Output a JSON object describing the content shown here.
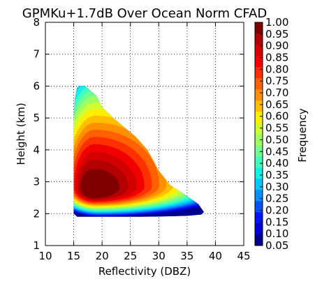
{
  "chart_data": {
    "type": "heatmap",
    "title": "GPMKu+1.7dB Over Ocean Norm CFAD",
    "xlabel": "Reflectivity (DBZ)",
    "ylabel": "Height (km)",
    "xlim": [
      10,
      45
    ],
    "ylim": [
      1,
      8
    ],
    "xticks": [
      "10",
      "15",
      "20",
      "25",
      "30",
      "35",
      "40",
      "45"
    ],
    "yticks": [
      "1",
      "2",
      "3",
      "4",
      "5",
      "6",
      "7",
      "8"
    ],
    "grid": true,
    "colorbar": {
      "label": "Frequency",
      "levels": [
        "0.05",
        "0.10",
        "0.15",
        "0.20",
        "0.25",
        "0.30",
        "0.35",
        "0.40",
        "0.45",
        "0.50",
        "0.55",
        "0.60",
        "0.65",
        "0.70",
        "0.75",
        "0.80",
        "0.85",
        "0.90",
        "0.95",
        "1.00"
      ],
      "colors": [
        "#00008f",
        "#0000d5",
        "#0015ff",
        "#0050ff",
        "#0090ff",
        "#00c8ff",
        "#10f0e8",
        "#40ffbf",
        "#70ff8f",
        "#a0ff60",
        "#cfff30",
        "#ffee00",
        "#ffbf00",
        "#ff9000",
        "#ff6000",
        "#ff3000",
        "#f20000",
        "#d40000",
        "#b30000",
        "#800000"
      ]
    },
    "envelope": {
      "x": [
        15.0,
        15.0,
        15.2,
        15.6,
        16.0,
        17.0,
        19.0,
        20.0,
        22.0,
        24.0,
        26.0,
        28.0,
        30.0,
        32.0,
        35.0,
        37.0,
        38.0,
        37.5,
        35.0,
        31.0,
        27.0,
        23.0,
        20.0,
        17.0,
        15.6,
        15.0
      ],
      "y": [
        2.0,
        5.0,
        5.6,
        5.95,
        6.0,
        6.0,
        5.7,
        5.35,
        5.0,
        4.7,
        4.4,
        4.0,
        3.35,
        2.9,
        2.55,
        2.3,
        2.05,
        1.97,
        1.93,
        1.91,
        1.9,
        1.9,
        1.9,
        1.9,
        1.9,
        2.0
      ]
    },
    "peak": {
      "x": 18.4,
      "y": 2.8,
      "value": 1.0
    }
  }
}
